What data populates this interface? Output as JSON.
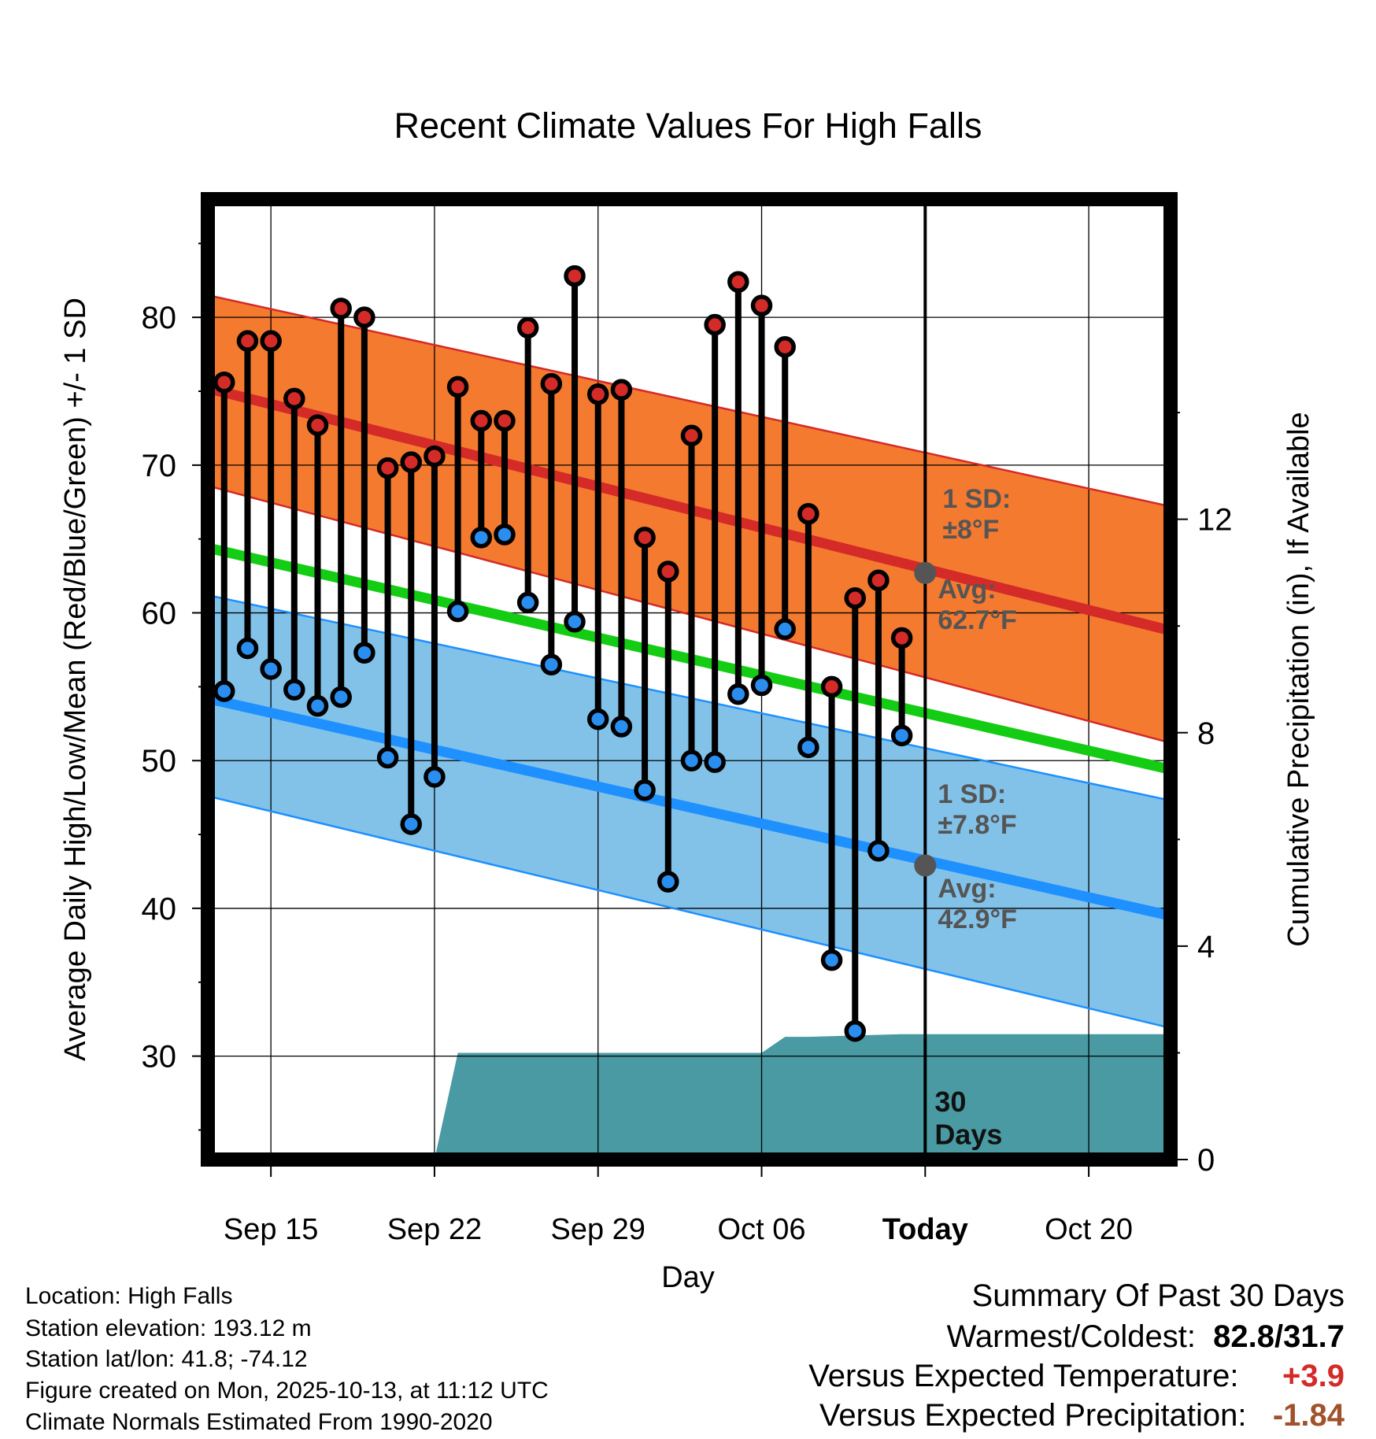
{
  "chart_data": {
    "type": "line",
    "title": "Recent Climate Values For High Falls",
    "xlabel": "Day",
    "ylabel": "Average Daily High/Low/Mean (Red/Blue/Green) +/- 1 SD",
    "y2label": "Cumulative Precipitation (in), If Available",
    "xlim": [
      -0.7,
      40.5
    ],
    "ylim": [
      23,
      88
    ],
    "y2lim": [
      0,
      18
    ],
    "x_ticks": [
      {
        "x": 2,
        "label": "Sep 15"
      },
      {
        "x": 9,
        "label": "Sep 22"
      },
      {
        "x": 16,
        "label": "Sep 29"
      },
      {
        "x": 23,
        "label": "Oct 06"
      },
      {
        "x": 30,
        "label": "Today"
      },
      {
        "x": 37,
        "label": "Oct 20"
      }
    ],
    "y_ticks": [
      30,
      40,
      50,
      60,
      70,
      80
    ],
    "y2_ticks": [
      0,
      4,
      8,
      12
    ],
    "today_x": 30,
    "days_label": "30\nDays",
    "normals": {
      "high_avg": {
        "x": [
          -0.7,
          40.5
        ],
        "y": [
          75.2,
          58.8
        ]
      },
      "high_sd_upper": {
        "x": [
          -0.7,
          40.5
        ],
        "y": [
          81.5,
          67.2
        ]
      },
      "high_sd_lower": {
        "x": [
          -0.7,
          40.5
        ],
        "y": [
          68.6,
          51.2
        ]
      },
      "mean_avg": {
        "x": [
          -0.7,
          40.5
        ],
        "y": [
          64.4,
          49.4
        ]
      },
      "low_avg": {
        "x": [
          -0.7,
          40.5
        ],
        "y": [
          54.2,
          39.5
        ]
      },
      "low_sd_upper": {
        "x": [
          -0.7,
          40.5
        ],
        "y": [
          61.2,
          47.3
        ]
      },
      "low_sd_lower": {
        "x": [
          -0.7,
          40.5
        ],
        "y": [
          47.6,
          31.9
        ]
      }
    },
    "colors": {
      "high_band": "#f47a30",
      "high_line": "#d42a28",
      "low_band": "#82c2e8",
      "low_line": "#1e90ff",
      "mean_line": "#14cc14",
      "precip": "#4a9aa3",
      "high_dot": "#d42a28",
      "low_dot": "#2a8ef0",
      "annotation": "#555555",
      "warm_value": "#d42a28",
      "precip_value": "#a0522d"
    },
    "annotations": {
      "high_sd": "1 SD:\n±8°F",
      "high_avg": "Avg:\n62.7°F",
      "low_sd": "1 SD:\n±7.8°F",
      "low_avg": "Avg:\n42.9°F",
      "high_avg_value": 62.7,
      "low_avg_value": 42.9
    },
    "series": [
      {
        "name": "High",
        "x": [
          0,
          1,
          2,
          3,
          4,
          5,
          6,
          7,
          8,
          9,
          10,
          11,
          12,
          13,
          14,
          15,
          16,
          17,
          18,
          19,
          20,
          21,
          22,
          23,
          24,
          25,
          26,
          27,
          28,
          29
        ],
        "values": [
          75.6,
          78.4,
          78.4,
          74.5,
          72.7,
          80.6,
          80.0,
          69.8,
          70.2,
          70.6,
          75.3,
          73.0,
          73.0,
          79.3,
          75.5,
          82.8,
          74.8,
          75.1,
          65.1,
          62.8,
          72.0,
          79.5,
          82.4,
          80.8,
          78.0,
          66.7,
          55.0,
          61.0,
          62.2,
          58.3
        ]
      },
      {
        "name": "Low",
        "x": [
          0,
          1,
          2,
          3,
          4,
          5,
          6,
          7,
          8,
          9,
          10,
          11,
          12,
          13,
          14,
          15,
          16,
          17,
          18,
          19,
          20,
          21,
          22,
          23,
          24,
          25,
          26,
          27,
          28,
          29
        ],
        "values": [
          54.7,
          57.6,
          56.2,
          54.8,
          53.7,
          54.3,
          57.3,
          50.2,
          45.7,
          48.9,
          60.1,
          65.1,
          65.3,
          60.7,
          56.5,
          59.4,
          52.8,
          52.3,
          48.0,
          41.8,
          50.0,
          49.9,
          54.5,
          55.1,
          58.9,
          50.9,
          36.5,
          31.7,
          43.9,
          51.7
        ]
      },
      {
        "name": "Cumulative Precipitation",
        "axis": "y2",
        "x": [
          9,
          10,
          23,
          24,
          25,
          29,
          40.5
        ],
        "values": [
          0,
          2.0,
          2.0,
          2.3,
          2.3,
          2.35,
          2.35
        ]
      }
    ]
  },
  "footer": {
    "location": "Location: High Falls",
    "elevation": "Station elevation: 193.12 m",
    "latlon": "Station lat/lon: 41.8; -74.12",
    "created": "Figure created on Mon, 2025-10-13, at 11:12 UTC",
    "normals": "Climate Normals Estimated From 1990-2020"
  },
  "summary": {
    "title": "Summary Of Past 30 Days",
    "warmest_label": "Warmest/Coldest:",
    "warmest_value": "82.8/31.7",
    "temp_label": "Versus Expected Temperature:",
    "temp_value": "+3.9",
    "precip_label": "Versus Expected Precipitation:",
    "precip_value": "-1.84"
  }
}
